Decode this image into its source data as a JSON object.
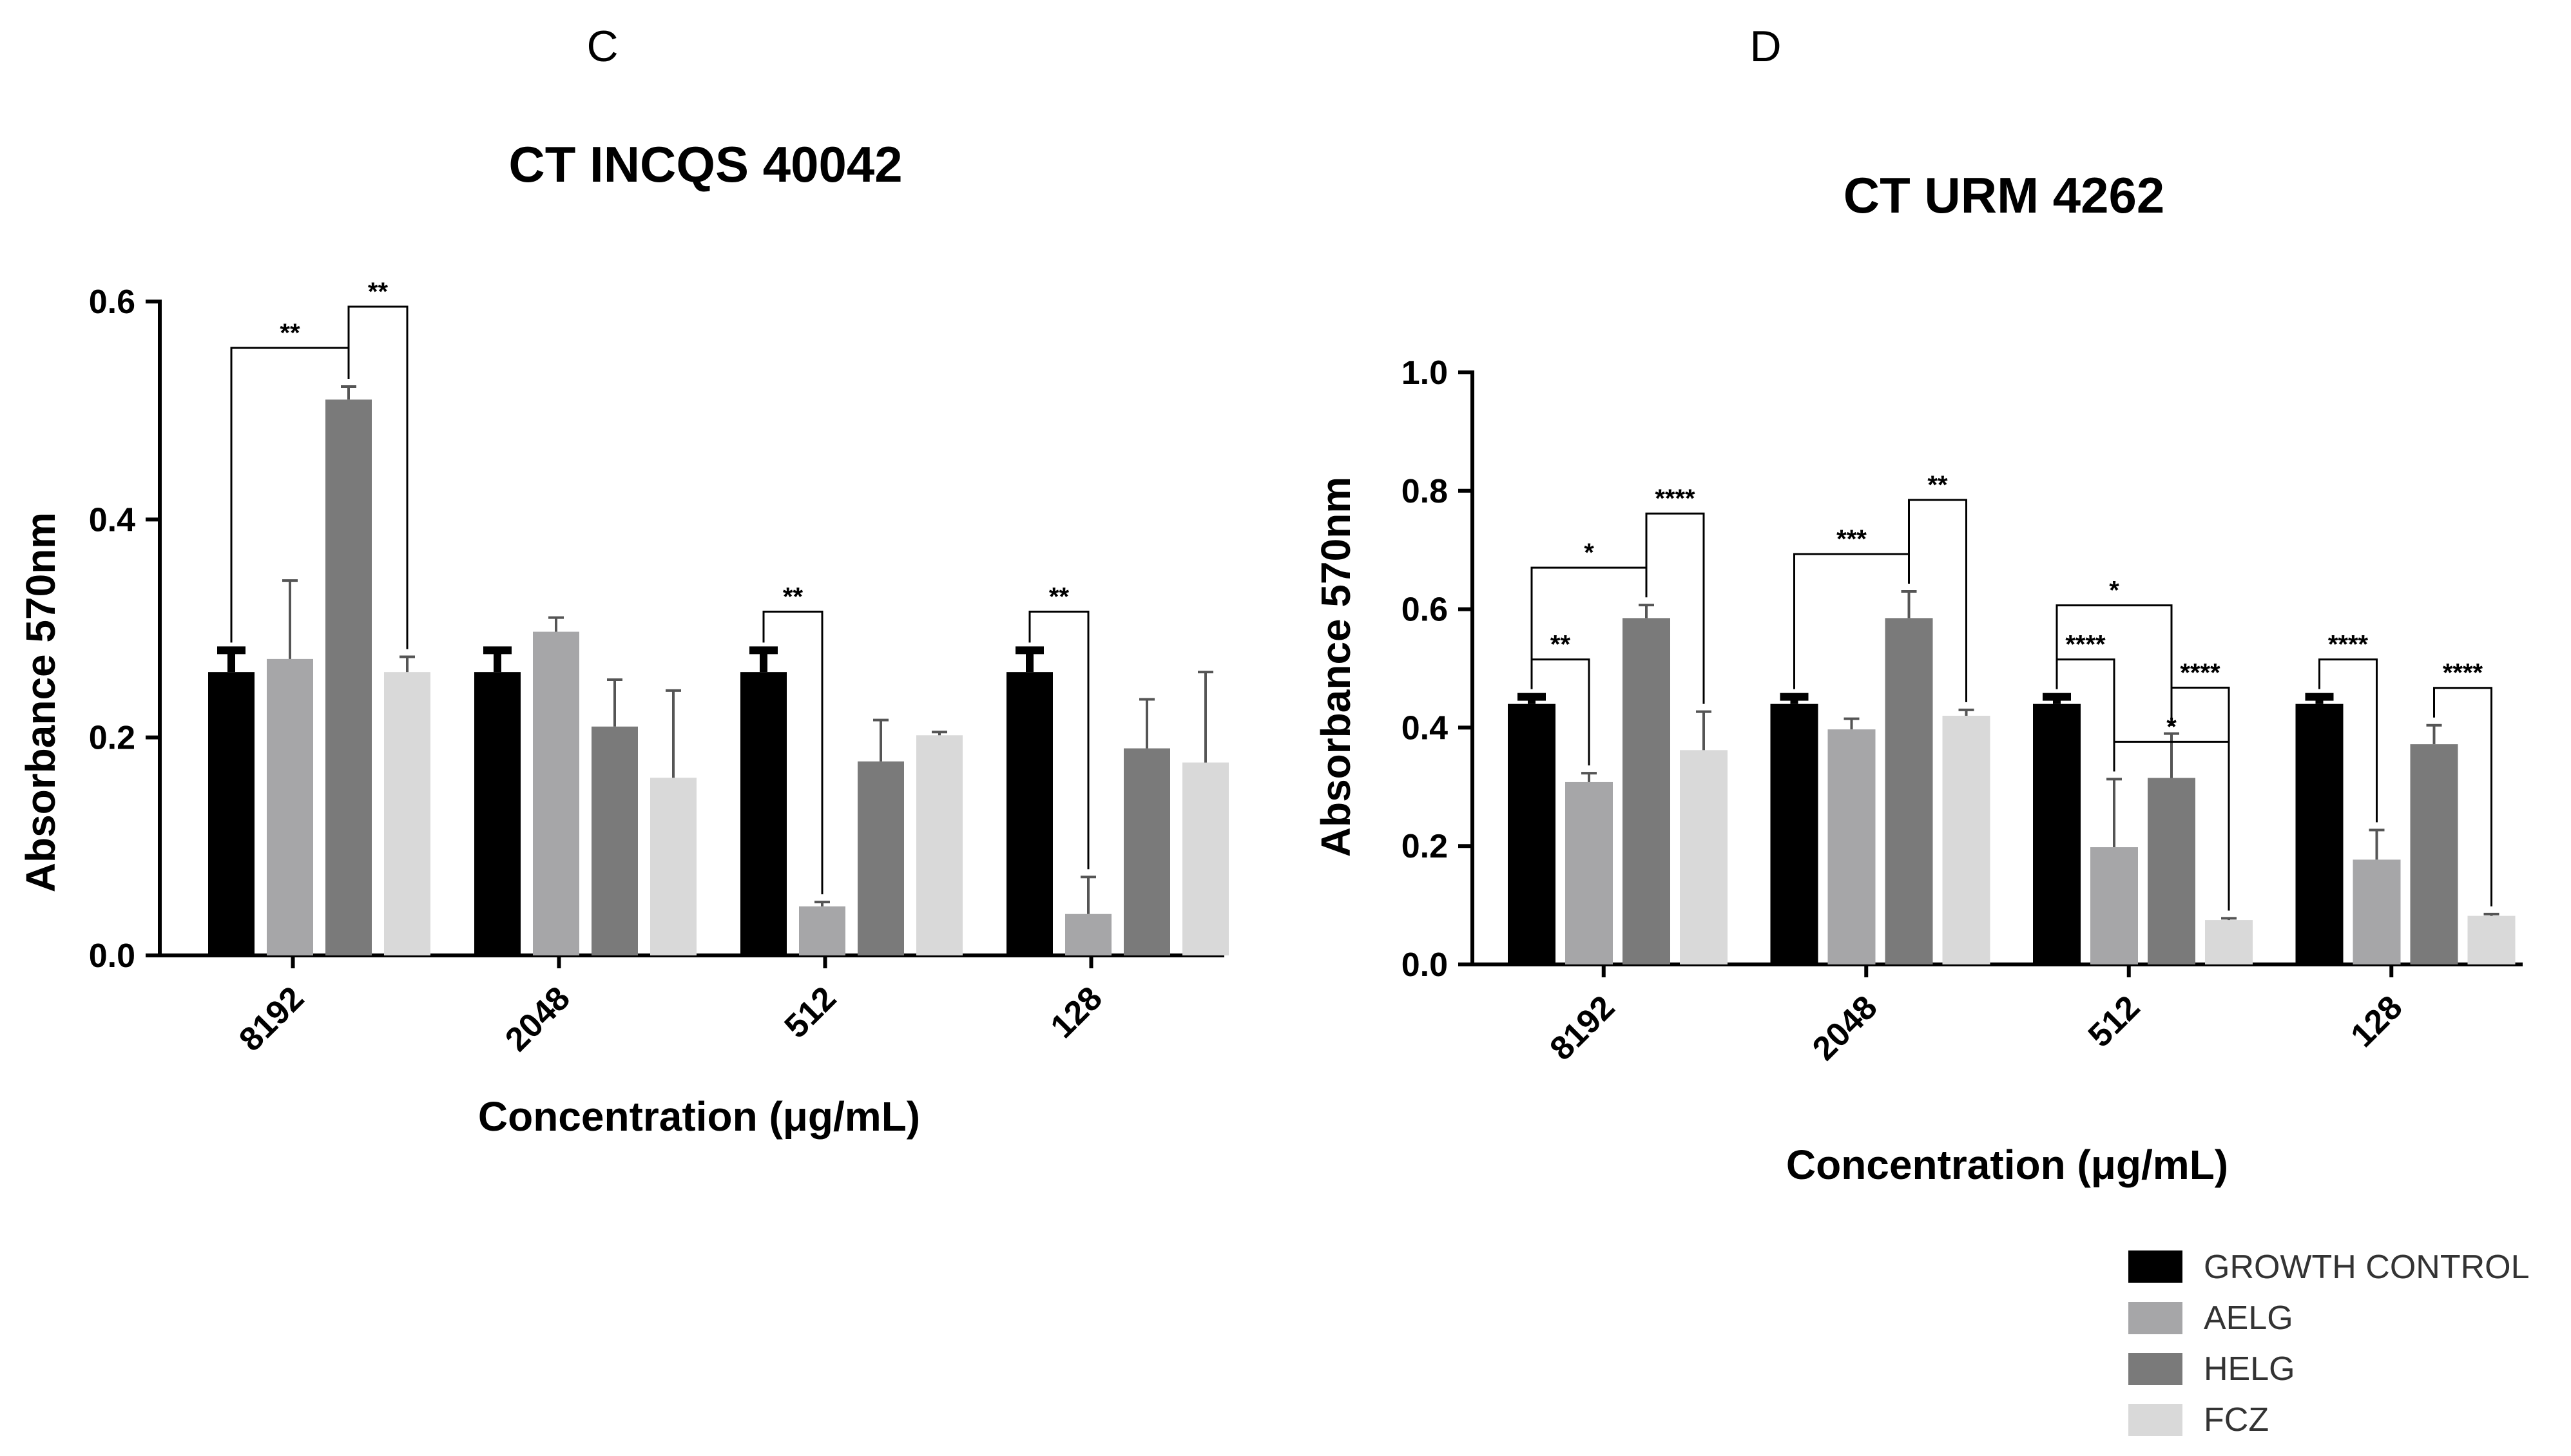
{
  "colors": {
    "GROWTH CONTROL": "#000000",
    "AELG": "#a6a6a8",
    "HELG": "#7a7a7a",
    "FCZ": "#d9d9d9"
  },
  "legend": [
    "GROWTH CONTROL",
    "AELG",
    "HELG",
    "FCZ"
  ],
  "chart_data": [
    {
      "panel": "C",
      "type": "bar",
      "title": "CT INCQS  40042",
      "xlabel": "Concentration (μg/mL)",
      "ylabel": "Absorbance 570nm",
      "ylim": [
        0,
        0.6
      ],
      "yticks": [
        "0.0",
        "0.2",
        "0.4",
        "0.6"
      ],
      "categories": [
        "8192",
        "2048",
        "512",
        "128"
      ],
      "series": [
        {
          "name": "GROWTH CONTROL",
          "values": [
            0.26,
            0.26,
            0.26,
            0.26
          ],
          "errors": [
            0.02,
            0.02,
            0.02,
            0.02
          ]
        },
        {
          "name": "AELG",
          "values": [
            0.272,
            0.297,
            0.045,
            0.038
          ],
          "errors": [
            0.072,
            0.013,
            0.004,
            0.034
          ]
        },
        {
          "name": "HELG",
          "values": [
            0.51,
            0.21,
            0.178,
            0.19
          ],
          "errors": [
            0.012,
            0.043,
            0.038,
            0.045
          ]
        },
        {
          "name": "FCZ",
          "values": [
            0.26,
            0.163,
            0.202,
            0.177
          ],
          "errors": [
            0.014,
            0.08,
            0.003,
            0.083
          ]
        }
      ],
      "significance": [
        {
          "from": [
            0,
            0
          ],
          "to": [
            0,
            2
          ],
          "label": "**"
        },
        {
          "from": [
            0,
            2
          ],
          "to": [
            0,
            3
          ],
          "label": "**"
        },
        {
          "from": [
            2,
            0
          ],
          "to": [
            2,
            1
          ],
          "label": "**"
        },
        {
          "from": [
            3,
            0
          ],
          "to": [
            3,
            1
          ],
          "label": "**"
        }
      ]
    },
    {
      "panel": "D",
      "type": "bar",
      "title": "CT URM 4262",
      "xlabel": "Concentration (μg/mL)",
      "ylabel": "Absorbance 570nm",
      "ylim": [
        0,
        1.0
      ],
      "yticks": [
        "0.0",
        "0.2",
        "0.4",
        "0.6",
        "0.8",
        "1.0"
      ],
      "categories": [
        "8192",
        "2048",
        "512",
        "128"
      ],
      "series": [
        {
          "name": "GROWTH CONTROL",
          "values": [
            0.44,
            0.44,
            0.44,
            0.44
          ],
          "errors": [
            0.012,
            0.012,
            0.012,
            0.012
          ]
        },
        {
          "name": "AELG",
          "values": [
            0.308,
            0.397,
            0.198,
            0.177
          ],
          "errors": [
            0.015,
            0.018,
            0.115,
            0.05
          ]
        },
        {
          "name": "HELG",
          "values": [
            0.585,
            0.585,
            0.315,
            0.372
          ],
          "errors": [
            0.022,
            0.045,
            0.075,
            0.032
          ]
        },
        {
          "name": "FCZ",
          "values": [
            0.362,
            0.42,
            0.075,
            0.082
          ],
          "errors": [
            0.065,
            0.01,
            0.003,
            0.003
          ]
        }
      ],
      "significance": [
        {
          "from": [
            0,
            0
          ],
          "to": [
            0,
            1
          ],
          "label": "**"
        },
        {
          "from": [
            0,
            0
          ],
          "to": [
            0,
            2
          ],
          "label": "*"
        },
        {
          "from": [
            0,
            2
          ],
          "to": [
            0,
            3
          ],
          "label": "****"
        },
        {
          "from": [
            1,
            0
          ],
          "to": [
            1,
            2
          ],
          "label": "***"
        },
        {
          "from": [
            1,
            2
          ],
          "to": [
            1,
            3
          ],
          "label": "**"
        },
        {
          "from": [
            2,
            0
          ],
          "to": [
            2,
            1
          ],
          "label": "****"
        },
        {
          "from": [
            2,
            0
          ],
          "to": [
            2,
            2
          ],
          "label": "*"
        },
        {
          "from": [
            2,
            1
          ],
          "to": [
            2,
            3
          ],
          "label": "*"
        },
        {
          "from": [
            2,
            2
          ],
          "to": [
            2,
            3
          ],
          "label": "****"
        },
        {
          "from": [
            3,
            0
          ],
          "to": [
            3,
            1
          ],
          "label": "****"
        },
        {
          "from": [
            3,
            2
          ],
          "to": [
            3,
            3
          ],
          "label": "****"
        }
      ]
    }
  ]
}
